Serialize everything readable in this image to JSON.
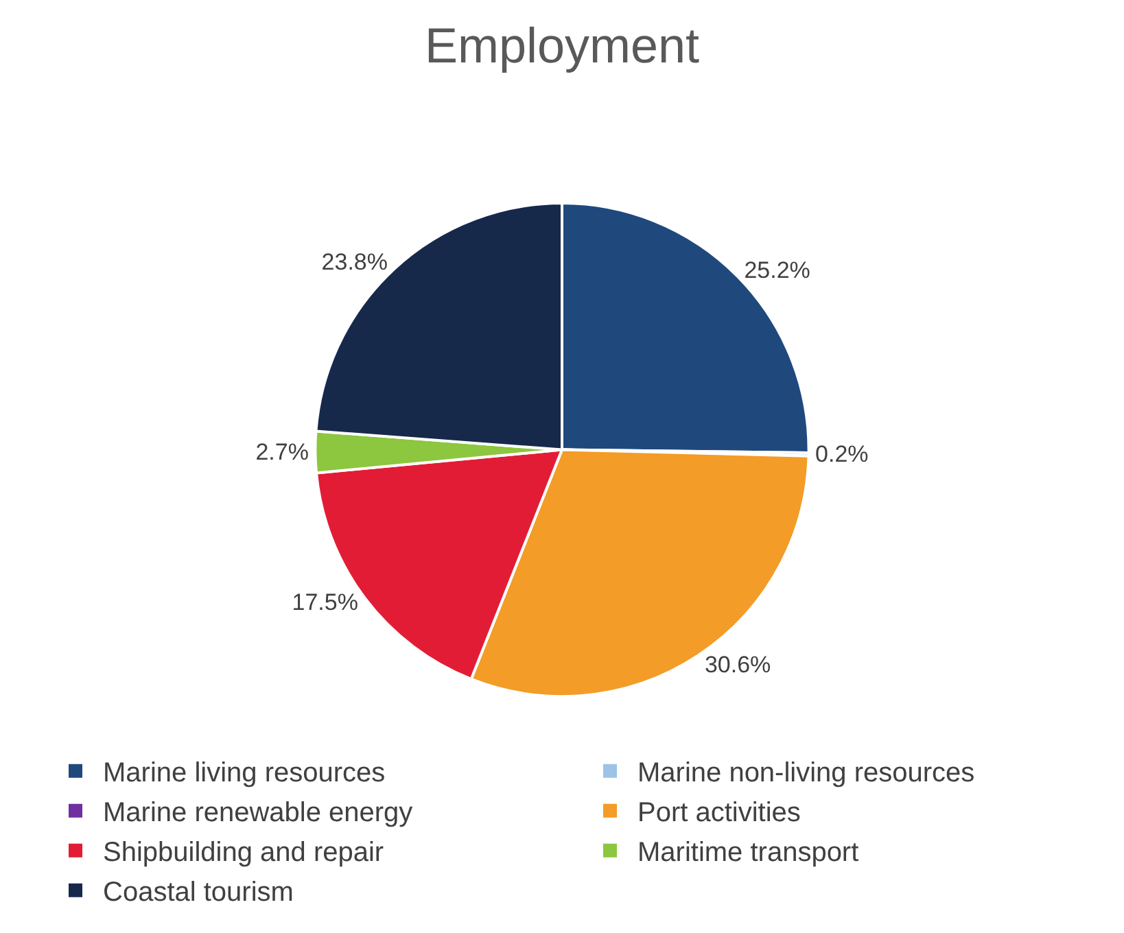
{
  "chart_data": {
    "type": "pie",
    "title": "Employment",
    "categories": [
      "Marine living resources",
      "Marine non-living resources",
      "Marine renewable energy",
      "Port activities",
      "Shipbuilding and repair",
      "Maritime transport",
      "Coastal tourism"
    ],
    "values": [
      25.2,
      0.2,
      0,
      30.6,
      17.5,
      2.7,
      23.8
    ],
    "value_labels": [
      "25.2%",
      "0.2%",
      null,
      "30.6%",
      "17.5%",
      "2.7%",
      "23.8%"
    ],
    "colors": [
      "#1f497d",
      "#9dc3e6",
      "#7030a0",
      "#f39c27",
      "#e31c35",
      "#8dc63f",
      "#16294a"
    ],
    "legend": "bottom"
  }
}
